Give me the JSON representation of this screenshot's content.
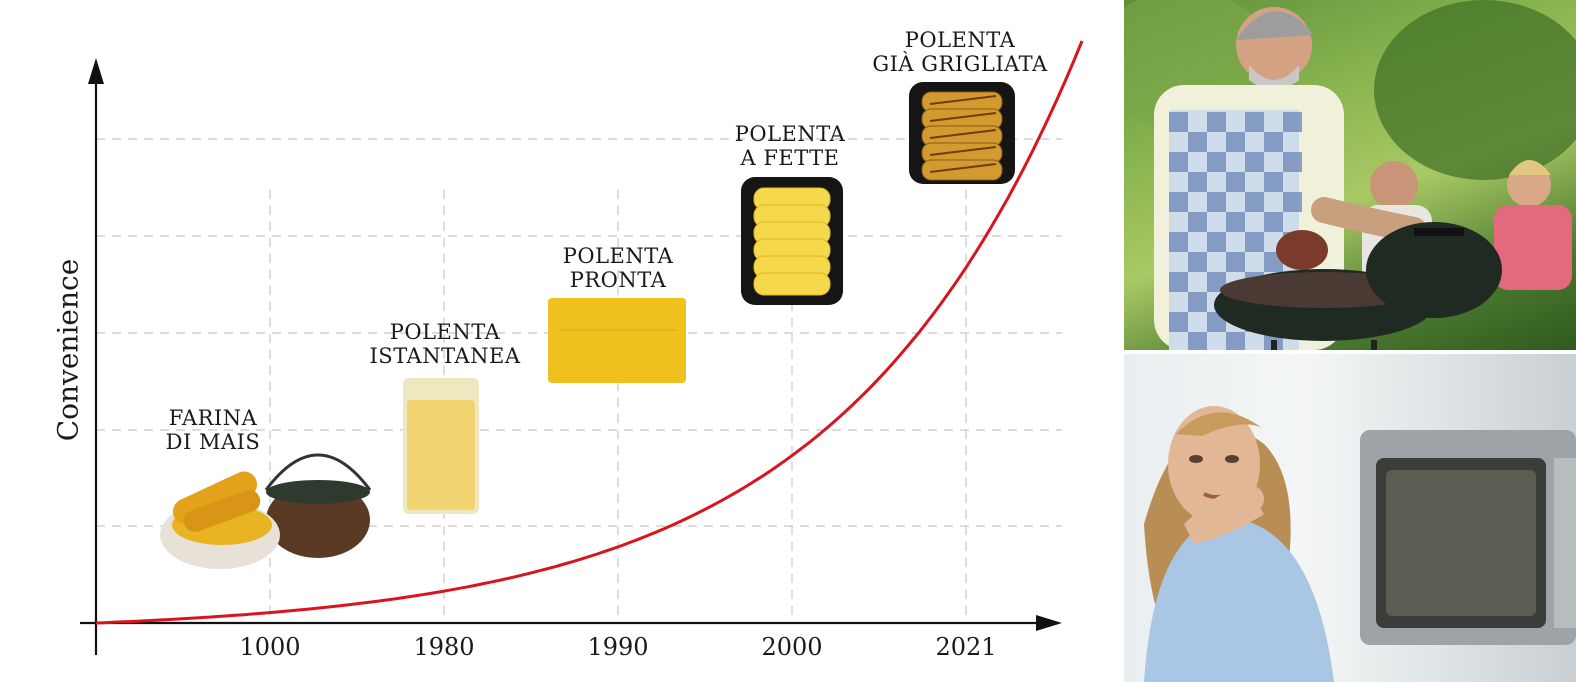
{
  "chart_data": {
    "type": "line",
    "ylabel": "Convenience",
    "xlabel": "",
    "categories": [
      "1000",
      "1980",
      "1990",
      "2000",
      "2021"
    ],
    "series": [
      {
        "values": [
          0.1,
          0.25,
          0.42,
          0.66,
          1.0
        ]
      }
    ],
    "stages": [
      {
        "label_lines": [
          "FARINA",
          "DI MAIS"
        ],
        "category": "1000",
        "level": 0.55
      },
      {
        "label_lines": [
          "POLENTA",
          "ISTANTANEA"
        ],
        "category": "1980",
        "level": 0.66
      },
      {
        "label_lines": [
          "POLENTA",
          "PRONTA"
        ],
        "category": "1990",
        "level": 0.79
      },
      {
        "label_lines": [
          "POLENTA",
          "A FETTE"
        ],
        "category": "2000",
        "level": 0.96
      },
      {
        "label_lines": [
          "POLENTA",
          "GIÀ GRIGLIATA"
        ],
        "category": "2021",
        "level": 1.13
      }
    ],
    "grid": true,
    "colors": {
      "curve": "#d9141e",
      "axis": "#111111",
      "grid": "#c8c8c8",
      "polenta": "#f2c230",
      "tray": "#151515"
    }
  },
  "photos": [
    {
      "name": "bbq-man-grilling",
      "colors": {
        "apron": "#dfe6ee",
        "grill": "#1e2a22",
        "meat": "#7a3b2a"
      }
    },
    {
      "name": "woman-microwave",
      "colors": {
        "shirt": "#a9c6e4",
        "hair": "#b98e55",
        "microwave": "#8a8f93"
      }
    }
  ]
}
